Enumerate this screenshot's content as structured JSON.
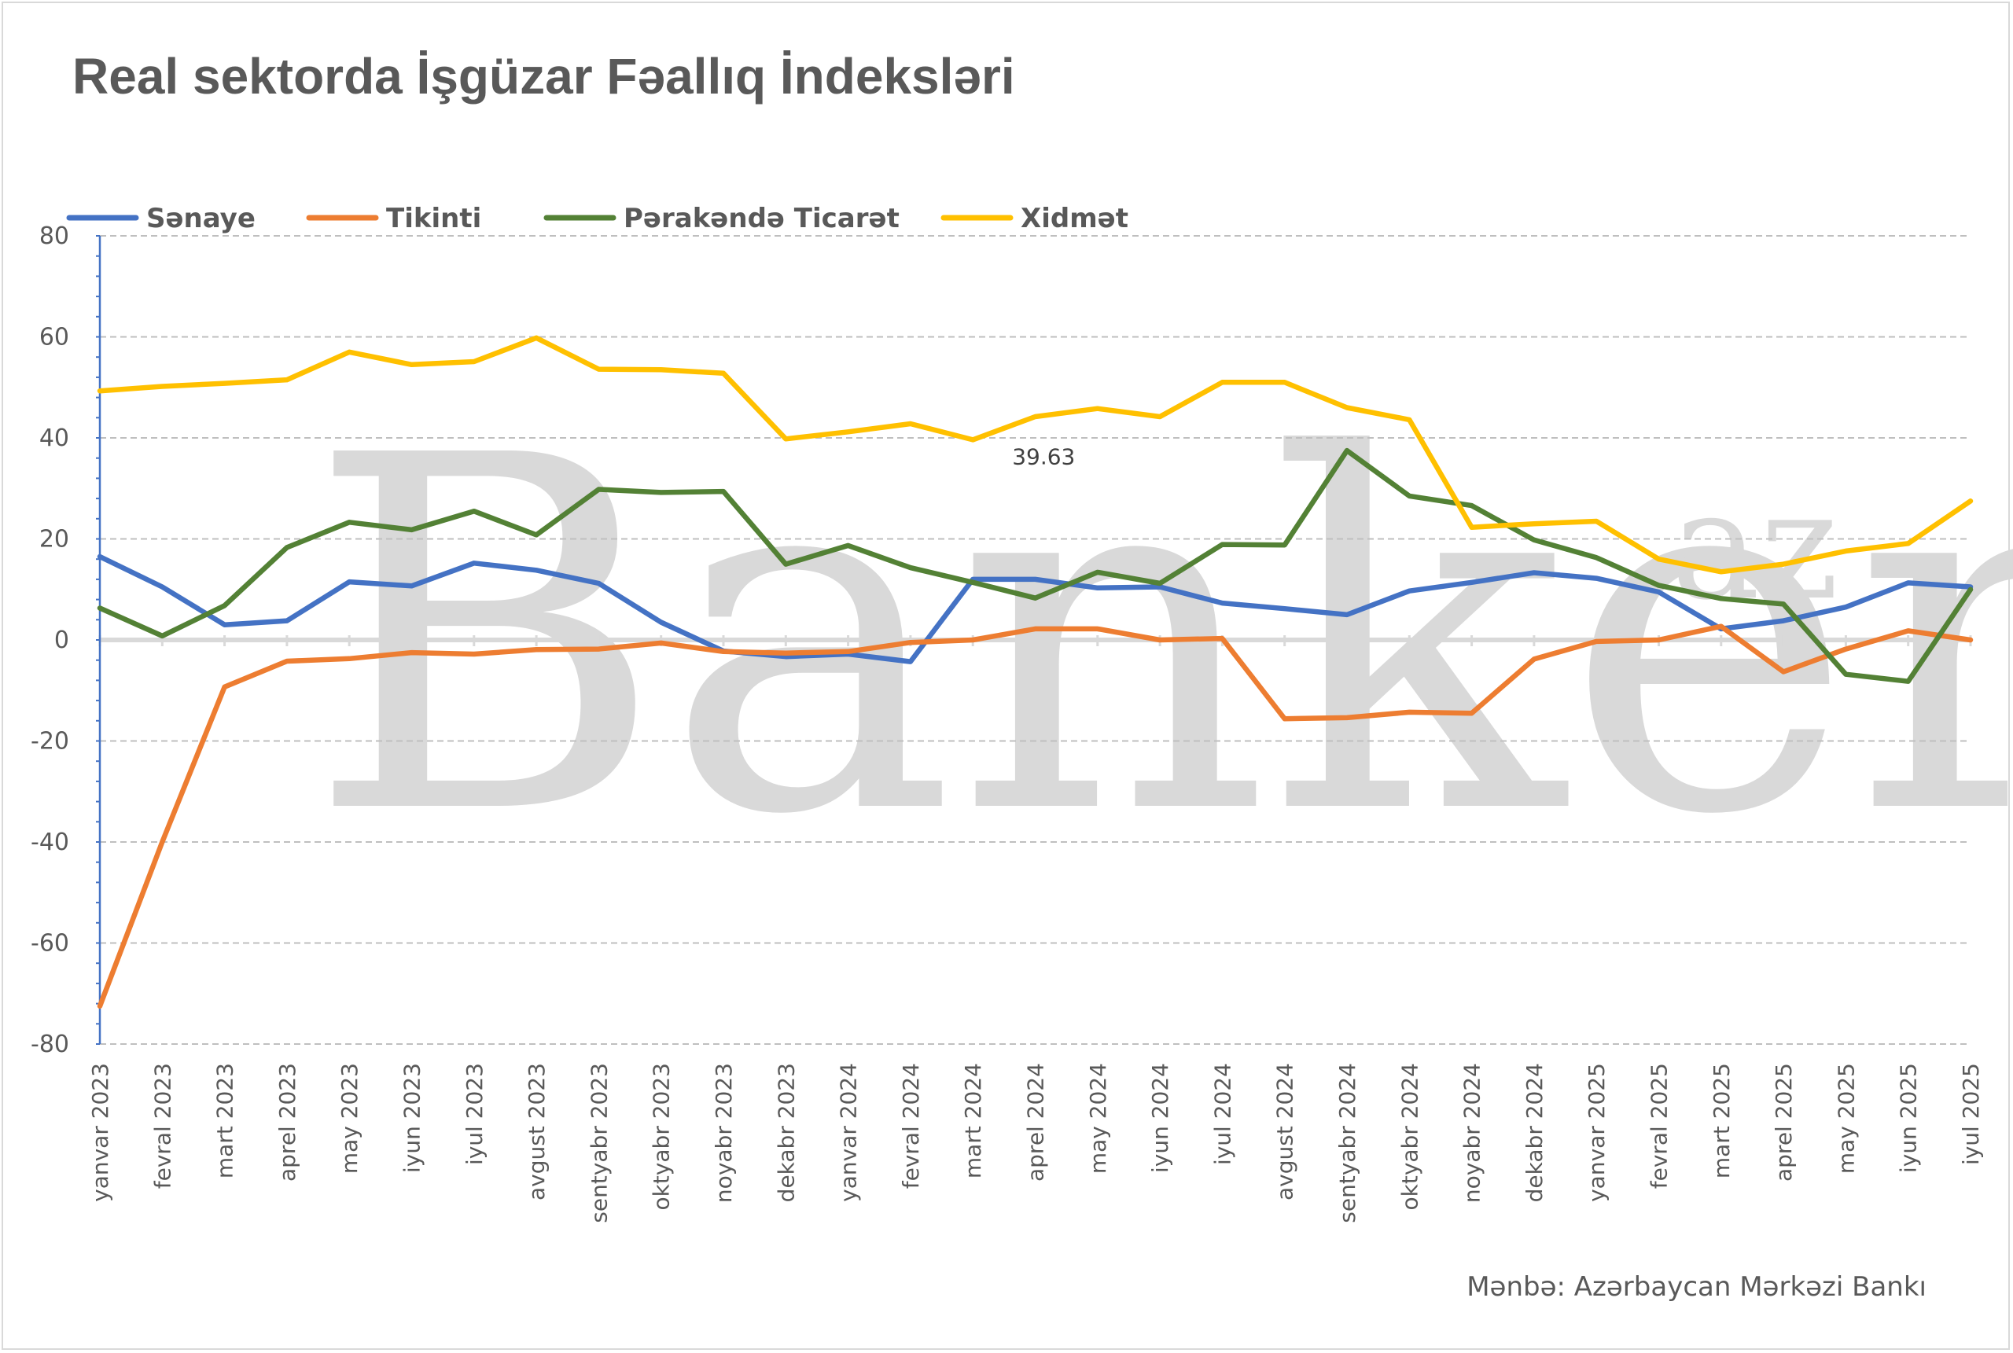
{
  "title": "Real sektorda İşgüzar Fəallıq İndeksləri",
  "source": "Mənbə: Azərbaycan Mərkəzi Bankı",
  "watermark": {
    "main": "Banker",
    "suffix": "az"
  },
  "chart_data": {
    "type": "line",
    "title": "Real sektorda İşgüzar Fəallıq İndeksləri",
    "xlabel": "",
    "ylabel": "",
    "ylim": [
      -80,
      80
    ],
    "yticks": [
      80,
      60,
      40,
      20,
      0,
      -20,
      -40,
      -60,
      -80
    ],
    "grid": true,
    "legend_position": "top",
    "categories": [
      "yanvar 2023",
      "fevral 2023",
      "mart 2023",
      "aprel 2023",
      "may 2023",
      "iyun 2023",
      "iyul 2023",
      "avgust 2023",
      "sentyabr 2023",
      "oktyabr 2023",
      "noyabr 2023",
      "dekabr 2023",
      "yanvar 2024",
      "fevral 2024",
      "mart 2024",
      "aprel 2024",
      "may 2024",
      "iyun 2024",
      "iyul 2024",
      "avgust 2024",
      "sentyabr 2024",
      "oktyabr 2024",
      "noyabr 2024",
      "dekabr 2024",
      "yanvar 2025",
      "fevral 2025",
      "mart 2025",
      "aprel 2025",
      "may 2025",
      "iyun 2025",
      "iyul 2025"
    ],
    "series": [
      {
        "name": "Sənaye",
        "color": "#4472c4",
        "values": [
          16.5,
          10.5,
          3,
          3.8,
          11.5,
          10.7,
          15.2,
          13.8,
          11.2,
          3.5,
          -2.2,
          -3.3,
          -2.8,
          -4.3,
          12,
          12,
          10.3,
          10.5,
          7.3,
          6.2,
          5,
          9.7,
          11.4,
          13.3,
          12.2,
          9.5,
          2.2,
          3.8,
          6.5,
          11.3,
          10.5
        ]
      },
      {
        "name": "Tikinti",
        "color": "#ed7d31",
        "values": [
          -72.5,
          -40,
          -9.3,
          -4.2,
          -3.7,
          -2.5,
          -2.8,
          -1.9,
          -1.8,
          -0.6,
          -2.3,
          -2.6,
          -2.3,
          -0.5,
          0,
          2.2,
          2.2,
          0,
          0.3,
          -15.6,
          -15.4,
          -14.3,
          -14.5,
          -3.8,
          -0.3,
          0,
          2.7,
          -6.3,
          -1.8,
          1.8,
          0
        ]
      },
      {
        "name": "Pərakəndə Ticarət",
        "color": "#538135",
        "values": [
          6.3,
          0.8,
          6.8,
          18.3,
          23.3,
          21.8,
          25.5,
          20.8,
          29.8,
          29.2,
          29.4,
          15,
          18.7,
          14.3,
          11.4,
          8.3,
          13.4,
          11.2,
          18.9,
          18.8,
          37.5,
          28.5,
          26.6,
          19.8,
          16.3,
          10.8,
          8.2,
          7.1,
          -6.8,
          -8.2,
          10
        ]
      },
      {
        "name": "Xidmət",
        "color": "#ffc000",
        "values": [
          49.3,
          50.2,
          50.8,
          51.5,
          57,
          54.5,
          55.1,
          59.8,
          53.6,
          53.5,
          52.8,
          39.8,
          41.2,
          42.8,
          39.63,
          44.2,
          45.8,
          44.2,
          51,
          51,
          46,
          43.6,
          22.3,
          23,
          23.5,
          16,
          13.5,
          15,
          17.6,
          19.1,
          27.5
        ]
      }
    ],
    "data_labels": [
      {
        "series": "Xidmət",
        "index": 14,
        "text": "39.63"
      }
    ]
  }
}
